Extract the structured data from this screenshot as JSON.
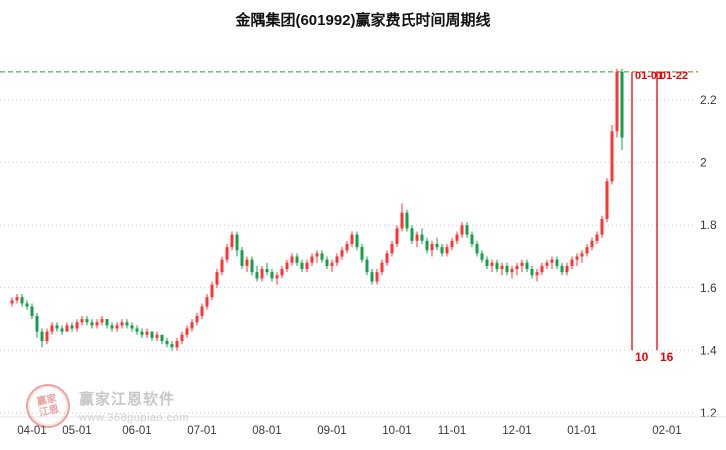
{
  "title": "金隅集团(601992)赢家费氏时间周期线",
  "watermark": {
    "brand": "赢家江恩软件",
    "url": "www.368gupiao.com",
    "seal_top": "赢家",
    "seal_bottom": "江恩"
  },
  "chart_data": {
    "type": "candlestick",
    "title": "金隅集团(601992)赢家费氏时间周期线",
    "ylabel_side": "right",
    "ylim": [
      1.2,
      2.32
    ],
    "grid": true,
    "top_line_price": 2.29,
    "y_ticks": [
      {
        "label": "2.2",
        "value": 2.2
      },
      {
        "label": "2",
        "value": 2.0
      },
      {
        "label": "1.8",
        "value": 1.8
      },
      {
        "label": "1.6",
        "value": 1.6
      },
      {
        "label": "1.4",
        "value": 1.4
      },
      {
        "label": "1.2",
        "value": 1.2
      }
    ],
    "x_ticks": [
      {
        "label": "04-01",
        "i": 4
      },
      {
        "label": "05-01",
        "i": 13
      },
      {
        "label": "06-01",
        "i": 25
      },
      {
        "label": "07-01",
        "i": 38
      },
      {
        "label": "08-01",
        "i": 51
      },
      {
        "label": "09-01",
        "i": 64
      },
      {
        "label": "10-01",
        "i": 77
      },
      {
        "label": "11-01",
        "i": 88
      },
      {
        "label": "12-01",
        "i": 101
      },
      {
        "label": "01-01",
        "i": 114
      },
      {
        "label": "02-01",
        "i": 131
      }
    ],
    "cycle_lines": [
      {
        "date": "01-01",
        "num": "10",
        "i": 124
      },
      {
        "date": "01-22",
        "num": "16",
        "i": 129
      }
    ],
    "colors": {
      "up": "#ff3333",
      "down": "#12a04a",
      "cycle": "#f00000",
      "top_line": "#2e9b2e",
      "grid": "#c9c9c9",
      "label": "#3a3a3a"
    },
    "ohlc": [
      [
        1.55,
        1.57,
        1.54,
        1.56
      ],
      [
        1.56,
        1.58,
        1.55,
        1.57
      ],
      [
        1.57,
        1.58,
        1.54,
        1.55
      ],
      [
        1.55,
        1.56,
        1.53,
        1.54
      ],
      [
        1.54,
        1.55,
        1.5,
        1.51
      ],
      [
        1.51,
        1.52,
        1.44,
        1.46
      ],
      [
        1.46,
        1.47,
        1.41,
        1.43
      ],
      [
        1.43,
        1.47,
        1.42,
        1.46
      ],
      [
        1.46,
        1.49,
        1.45,
        1.48
      ],
      [
        1.48,
        1.49,
        1.46,
        1.47
      ],
      [
        1.47,
        1.48,
        1.45,
        1.46
      ],
      [
        1.46,
        1.49,
        1.46,
        1.48
      ],
      [
        1.48,
        1.49,
        1.46,
        1.47
      ],
      [
        1.47,
        1.5,
        1.46,
        1.49
      ],
      [
        1.49,
        1.51,
        1.48,
        1.5
      ],
      [
        1.5,
        1.51,
        1.48,
        1.49
      ],
      [
        1.49,
        1.5,
        1.47,
        1.48
      ],
      [
        1.48,
        1.5,
        1.47,
        1.49
      ],
      [
        1.49,
        1.51,
        1.48,
        1.5
      ],
      [
        1.5,
        1.5,
        1.47,
        1.48
      ],
      [
        1.48,
        1.49,
        1.46,
        1.47
      ],
      [
        1.47,
        1.49,
        1.46,
        1.48
      ],
      [
        1.48,
        1.5,
        1.47,
        1.49
      ],
      [
        1.49,
        1.5,
        1.47,
        1.48
      ],
      [
        1.48,
        1.49,
        1.46,
        1.47
      ],
      [
        1.47,
        1.48,
        1.45,
        1.46
      ],
      [
        1.46,
        1.47,
        1.44,
        1.45
      ],
      [
        1.45,
        1.47,
        1.44,
        1.46
      ],
      [
        1.46,
        1.46,
        1.43,
        1.44
      ],
      [
        1.44,
        1.46,
        1.43,
        1.45
      ],
      [
        1.45,
        1.45,
        1.42,
        1.43
      ],
      [
        1.43,
        1.44,
        1.41,
        1.42
      ],
      [
        1.42,
        1.43,
        1.4,
        1.41
      ],
      [
        1.41,
        1.44,
        1.4,
        1.43
      ],
      [
        1.43,
        1.46,
        1.42,
        1.45
      ],
      [
        1.45,
        1.48,
        1.44,
        1.47
      ],
      [
        1.47,
        1.5,
        1.46,
        1.49
      ],
      [
        1.49,
        1.52,
        1.48,
        1.51
      ],
      [
        1.51,
        1.55,
        1.5,
        1.54
      ],
      [
        1.54,
        1.58,
        1.53,
        1.57
      ],
      [
        1.57,
        1.62,
        1.56,
        1.61
      ],
      [
        1.61,
        1.66,
        1.6,
        1.65
      ],
      [
        1.65,
        1.7,
        1.64,
        1.69
      ],
      [
        1.69,
        1.74,
        1.68,
        1.73
      ],
      [
        1.73,
        1.78,
        1.72,
        1.77
      ],
      [
        1.77,
        1.78,
        1.7,
        1.72
      ],
      [
        1.72,
        1.73,
        1.66,
        1.67
      ],
      [
        1.67,
        1.7,
        1.65,
        1.69
      ],
      [
        1.69,
        1.7,
        1.64,
        1.65
      ],
      [
        1.65,
        1.67,
        1.62,
        1.63
      ],
      [
        1.63,
        1.67,
        1.62,
        1.66
      ],
      [
        1.66,
        1.68,
        1.64,
        1.65
      ],
      [
        1.65,
        1.66,
        1.62,
        1.63
      ],
      [
        1.63,
        1.65,
        1.61,
        1.64
      ],
      [
        1.64,
        1.67,
        1.63,
        1.66
      ],
      [
        1.66,
        1.69,
        1.65,
        1.68
      ],
      [
        1.68,
        1.71,
        1.67,
        1.7
      ],
      [
        1.7,
        1.71,
        1.67,
        1.68
      ],
      [
        1.68,
        1.69,
        1.65,
        1.66
      ],
      [
        1.66,
        1.69,
        1.65,
        1.68
      ],
      [
        1.68,
        1.71,
        1.67,
        1.7
      ],
      [
        1.7,
        1.72,
        1.68,
        1.71
      ],
      [
        1.71,
        1.72,
        1.68,
        1.69
      ],
      [
        1.69,
        1.7,
        1.66,
        1.67
      ],
      [
        1.67,
        1.69,
        1.65,
        1.68
      ],
      [
        1.68,
        1.71,
        1.67,
        1.7
      ],
      [
        1.7,
        1.73,
        1.69,
        1.72
      ],
      [
        1.72,
        1.75,
        1.71,
        1.74
      ],
      [
        1.74,
        1.78,
        1.73,
        1.77
      ],
      [
        1.77,
        1.78,
        1.72,
        1.73
      ],
      [
        1.73,
        1.74,
        1.68,
        1.69
      ],
      [
        1.69,
        1.7,
        1.64,
        1.65
      ],
      [
        1.65,
        1.66,
        1.61,
        1.62
      ],
      [
        1.62,
        1.66,
        1.61,
        1.65
      ],
      [
        1.65,
        1.69,
        1.64,
        1.68
      ],
      [
        1.68,
        1.72,
        1.67,
        1.71
      ],
      [
        1.71,
        1.75,
        1.7,
        1.74
      ],
      [
        1.74,
        1.8,
        1.73,
        1.79
      ],
      [
        1.79,
        1.87,
        1.78,
        1.84
      ],
      [
        1.84,
        1.85,
        1.78,
        1.79
      ],
      [
        1.79,
        1.8,
        1.74,
        1.75
      ],
      [
        1.75,
        1.78,
        1.73,
        1.77
      ],
      [
        1.77,
        1.79,
        1.74,
        1.75
      ],
      [
        1.75,
        1.76,
        1.71,
        1.72
      ],
      [
        1.72,
        1.75,
        1.7,
        1.74
      ],
      [
        1.74,
        1.76,
        1.72,
        1.73
      ],
      [
        1.73,
        1.74,
        1.7,
        1.71
      ],
      [
        1.71,
        1.74,
        1.7,
        1.73
      ],
      [
        1.73,
        1.76,
        1.72,
        1.75
      ],
      [
        1.75,
        1.78,
        1.74,
        1.77
      ],
      [
        1.77,
        1.81,
        1.76,
        1.8
      ],
      [
        1.8,
        1.81,
        1.76,
        1.77
      ],
      [
        1.77,
        1.78,
        1.73,
        1.74
      ],
      [
        1.74,
        1.75,
        1.7,
        1.71
      ],
      [
        1.71,
        1.72,
        1.68,
        1.69
      ],
      [
        1.69,
        1.7,
        1.66,
        1.67
      ],
      [
        1.67,
        1.69,
        1.65,
        1.68
      ],
      [
        1.68,
        1.69,
        1.65,
        1.66
      ],
      [
        1.66,
        1.68,
        1.64,
        1.67
      ],
      [
        1.67,
        1.68,
        1.64,
        1.65
      ],
      [
        1.65,
        1.67,
        1.63,
        1.66
      ],
      [
        1.66,
        1.68,
        1.64,
        1.67
      ],
      [
        1.67,
        1.69,
        1.65,
        1.68
      ],
      [
        1.68,
        1.69,
        1.65,
        1.66
      ],
      [
        1.66,
        1.67,
        1.63,
        1.64
      ],
      [
        1.64,
        1.66,
        1.62,
        1.65
      ],
      [
        1.65,
        1.68,
        1.64,
        1.67
      ],
      [
        1.67,
        1.69,
        1.66,
        1.68
      ],
      [
        1.68,
        1.7,
        1.66,
        1.69
      ],
      [
        1.69,
        1.7,
        1.66,
        1.67
      ],
      [
        1.67,
        1.68,
        1.64,
        1.65
      ],
      [
        1.65,
        1.68,
        1.64,
        1.67
      ],
      [
        1.67,
        1.7,
        1.66,
        1.69
      ],
      [
        1.69,
        1.71,
        1.67,
        1.7
      ],
      [
        1.7,
        1.72,
        1.68,
        1.71
      ],
      [
        1.71,
        1.74,
        1.7,
        1.73
      ],
      [
        1.73,
        1.76,
        1.72,
        1.75
      ],
      [
        1.75,
        1.78,
        1.74,
        1.77
      ],
      [
        1.77,
        1.83,
        1.76,
        1.82
      ],
      [
        1.82,
        1.95,
        1.81,
        1.94
      ],
      [
        1.94,
        2.12,
        1.93,
        2.1
      ],
      [
        2.1,
        2.3,
        2.08,
        2.29
      ],
      [
        2.29,
        2.3,
        2.04,
        2.08
      ]
    ]
  }
}
